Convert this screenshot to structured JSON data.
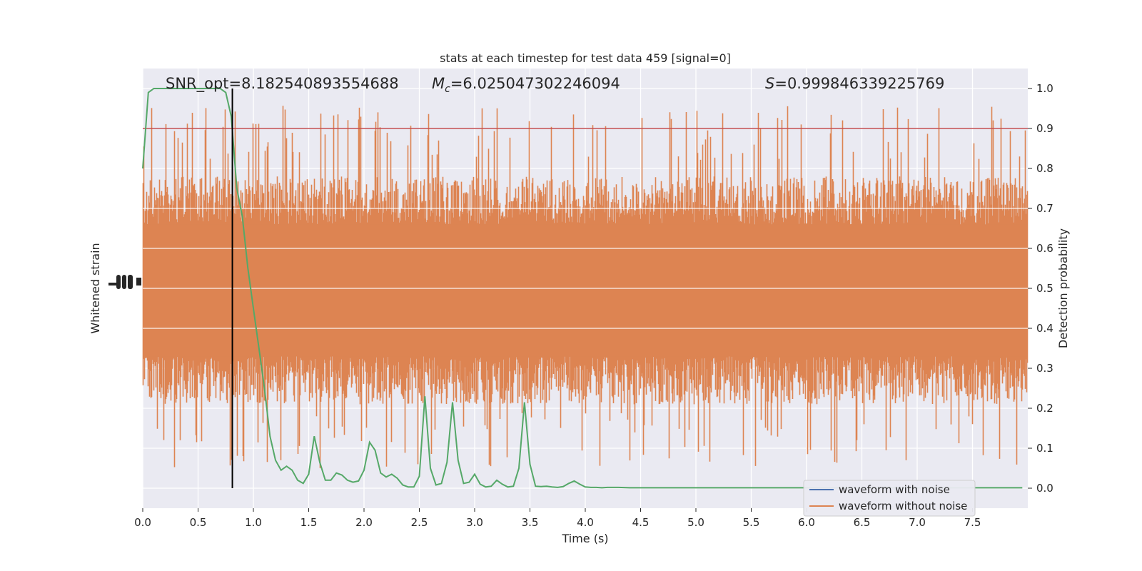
{
  "chart_data": {
    "type": "line",
    "title": "stats at each timestep for test data 459 [signal=0]",
    "xlabel": "Time (s)",
    "ylabel_left": "Whitened strain",
    "ylabel_right": "Detection probability",
    "xlim": [
      0.0,
      8.0
    ],
    "ylim_right": [
      -0.05,
      1.05
    ],
    "xticks": [
      0.0,
      0.5,
      1.0,
      1.5,
      2.0,
      2.5,
      3.0,
      3.5,
      4.0,
      4.5,
      5.0,
      5.5,
      6.0,
      6.5,
      7.0,
      7.5
    ],
    "xtick_labels": [
      "0.0",
      "0.5",
      "1.0",
      "1.5",
      "2.0",
      "2.5",
      "3.0",
      "3.5",
      "4.0",
      "4.5",
      "5.0",
      "5.5",
      "6.0",
      "6.5",
      "7.0",
      "7.5"
    ],
    "yticks_right": [
      0.0,
      0.1,
      0.2,
      0.3,
      0.4,
      0.5,
      0.6,
      0.7,
      0.8,
      0.9,
      1.0
    ],
    "ytick_labels_right": [
      "0.0",
      "0.1",
      "0.2",
      "0.3",
      "0.4",
      "0.5",
      "0.6",
      "0.7",
      "0.8",
      "0.9",
      "1.0"
    ],
    "grid": true,
    "legend_placement": "lower-right",
    "annotations": {
      "snr_label": "SNR_opt=8.182540893554688",
      "mc_symbol": "M",
      "mc_subscript": "c",
      "mc_value": "=6.025047302246094",
      "s_symbol": "S",
      "s_value": "=0.999846339225769"
    },
    "threshold": 0.9,
    "marker_time": 0.81,
    "series": [
      {
        "name": "waveform with noise",
        "color": "#4c72b0",
        "kind": "strain"
      },
      {
        "name": "waveform without noise",
        "color": "#dd8452",
        "kind": "strain",
        "envelope_quantiles": {
          "p_high": 0.66,
          "p_low": 0.33,
          "max": 0.96,
          "min": 0.01
        }
      },
      {
        "name": "detection probability",
        "color": "#55a868",
        "kind": "probability",
        "x": [
          0.0,
          0.05,
          0.1,
          0.15,
          0.2,
          0.3,
          0.4,
          0.5,
          0.6,
          0.7,
          0.75,
          0.8,
          0.85,
          0.9,
          0.95,
          1.0,
          1.05,
          1.1,
          1.15,
          1.2,
          1.25,
          1.3,
          1.35,
          1.4,
          1.45,
          1.5,
          1.55,
          1.6,
          1.65,
          1.7,
          1.75,
          1.8,
          1.85,
          1.9,
          1.95,
          2.0,
          2.05,
          2.1,
          2.15,
          2.2,
          2.25,
          2.3,
          2.35,
          2.4,
          2.45,
          2.5,
          2.55,
          2.6,
          2.65,
          2.7,
          2.75,
          2.8,
          2.85,
          2.9,
          2.95,
          3.0,
          3.05,
          3.1,
          3.15,
          3.2,
          3.25,
          3.3,
          3.35,
          3.4,
          3.45,
          3.5,
          3.55,
          3.6,
          3.65,
          3.7,
          3.75,
          3.8,
          3.85,
          3.9,
          3.95,
          4.0,
          4.05,
          4.1,
          4.15,
          4.2,
          4.3,
          4.4,
          4.5,
          4.6,
          4.65,
          4.7,
          4.8,
          5.0,
          5.5,
          6.0,
          6.5,
          7.0,
          7.5,
          7.95
        ],
        "y": [
          0.8,
          0.99,
          1.0,
          1.0,
          1.0,
          1.0,
          1.0,
          1.0,
          1.0,
          1.0,
          0.99,
          0.93,
          0.75,
          0.68,
          0.55,
          0.45,
          0.35,
          0.25,
          0.13,
          0.07,
          0.045,
          0.055,
          0.045,
          0.02,
          0.012,
          0.035,
          0.13,
          0.065,
          0.02,
          0.02,
          0.038,
          0.033,
          0.02,
          0.015,
          0.018,
          0.045,
          0.115,
          0.095,
          0.038,
          0.028,
          0.035,
          0.025,
          0.008,
          0.003,
          0.003,
          0.03,
          0.23,
          0.05,
          0.008,
          0.012,
          0.065,
          0.215,
          0.07,
          0.012,
          0.015,
          0.035,
          0.01,
          0.003,
          0.005,
          0.02,
          0.01,
          0.003,
          0.005,
          0.05,
          0.215,
          0.06,
          0.005,
          0.004,
          0.005,
          0.003,
          0.002,
          0.004,
          0.012,
          0.018,
          0.01,
          0.003,
          0.002,
          0.002,
          0.001,
          0.002,
          0.002,
          0.001,
          0.001,
          0.001,
          0.001,
          0.001,
          0.001,
          0.001,
          0.001,
          0.001,
          0.001,
          0.001,
          0.001,
          0.001
        ]
      }
    ]
  }
}
